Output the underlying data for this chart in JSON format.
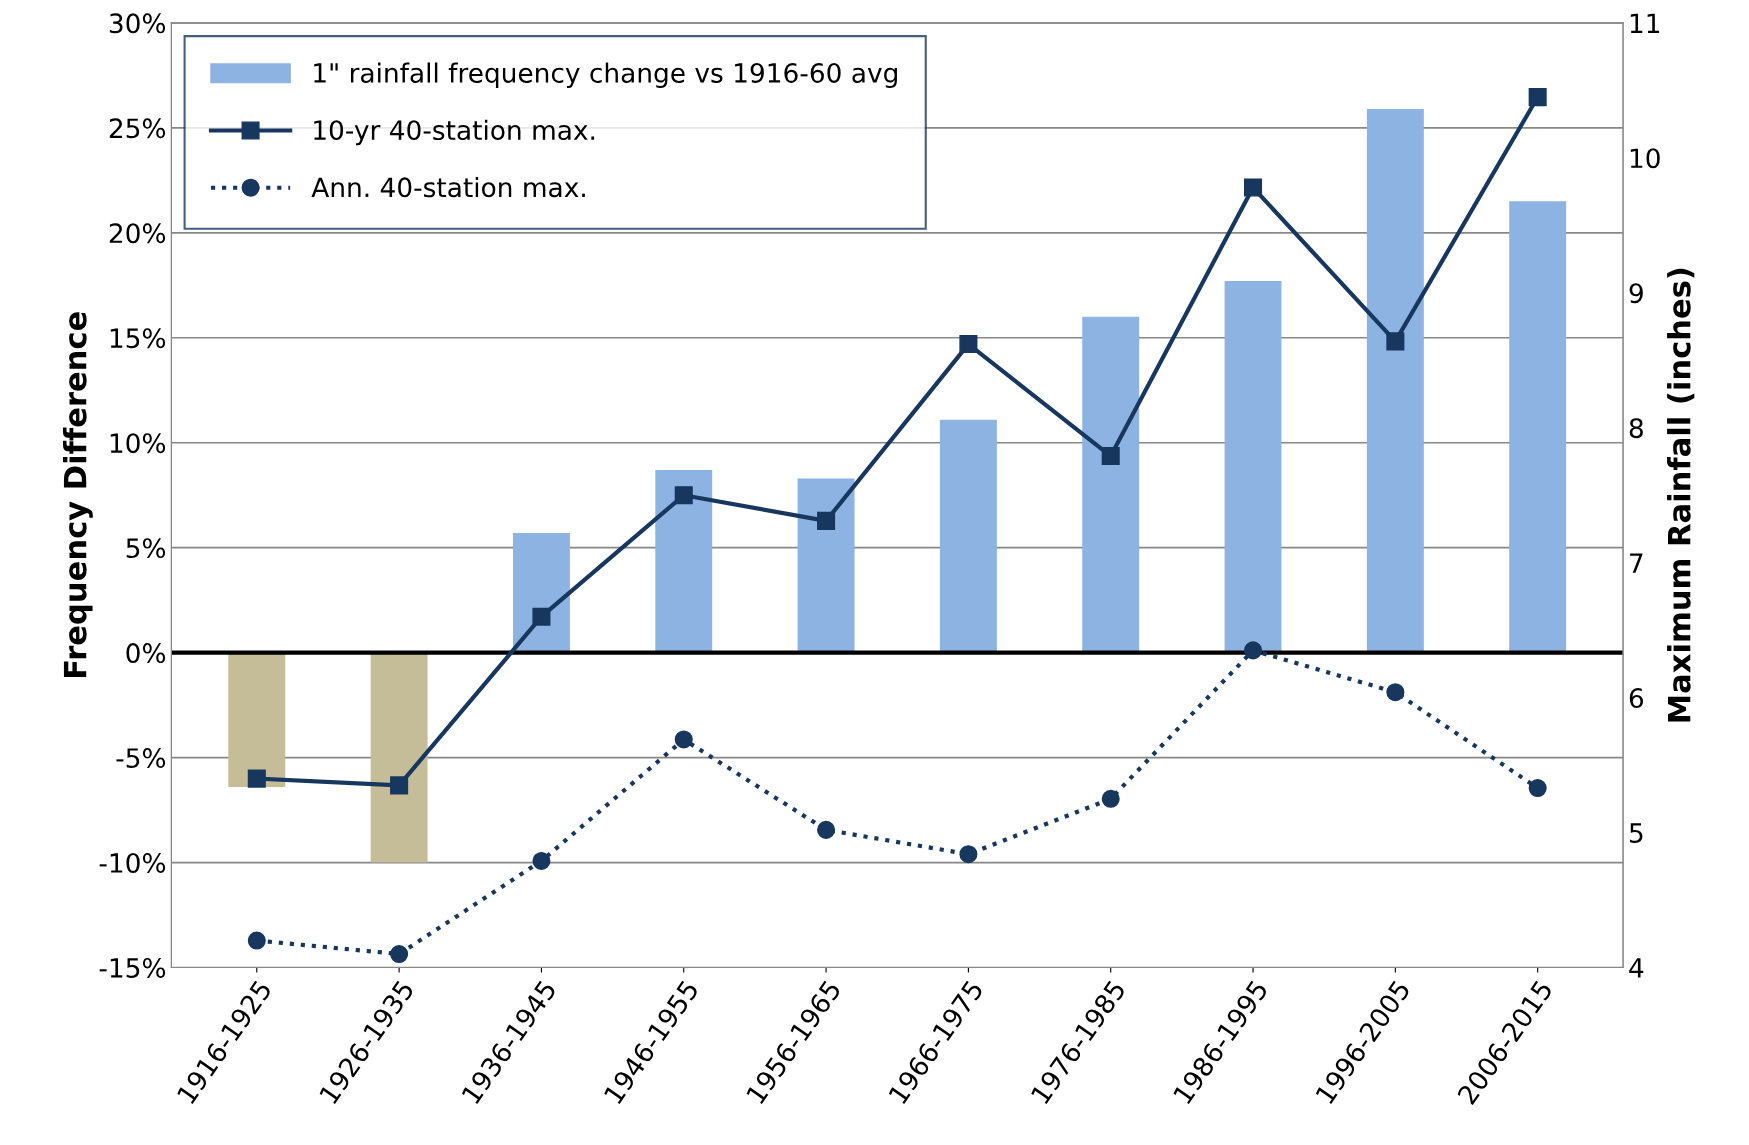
{
  "chart_data": {
    "type": "bar",
    "categories": [
      "1916-1925",
      "1926-1935",
      "1936-1945",
      "1946-1955",
      "1956-1965",
      "1966-1975",
      "1976-1985",
      "1986-1995",
      "1996-2005",
      "2006-2015"
    ],
    "series": [
      {
        "name": "1\" rainfall frequency change vs 1916-60 avg",
        "color": "#8db3e2",
        "colors": [
          "#c4bd97",
          "#c4bd97",
          "#8db3e2",
          "#8db3e2",
          "#8db3e2",
          "#8db3e2",
          "#8db3e2",
          "#8db3e2",
          "#8db3e2",
          "#8db3e2"
        ],
        "values": [
          -6.4,
          -10.0,
          5.7,
          8.7,
          8.3,
          11.1,
          16.0,
          17.7,
          25.9,
          21.5
        ]
      },
      {
        "name": "10-yr 40-station max.",
        "type": "line",
        "axis": "y2",
        "color": "#17375e",
        "marker": "square",
        "line_style": "solid",
        "values": [
          5.4,
          5.35,
          6.6,
          7.5,
          7.31,
          8.62,
          7.79,
          9.78,
          8.64,
          10.45
        ]
      },
      {
        "name": "Ann. 40-station max.",
        "type": "line",
        "axis": "y2",
        "color": "#17375e",
        "marker": "circle",
        "line_style": "dotted",
        "values": [
          4.2,
          4.1,
          4.79,
          5.69,
          5.02,
          4.84,
          5.25,
          6.35,
          6.04,
          5.33
        ]
      }
    ],
    "ylabel": "Frequency Difference",
    "y2label": "Maximum Rainfall (inches)",
    "ylim": [
      -15,
      30
    ],
    "yticks": [
      {
        "value": -15,
        "label": "-15%"
      },
      {
        "value": -10,
        "label": "-10%"
      },
      {
        "value": -5,
        "label": "-5%"
      },
      {
        "value": 0,
        "label": "0%"
      },
      {
        "value": 5,
        "label": "5%"
      },
      {
        "value": 10,
        "label": "10%"
      },
      {
        "value": 15,
        "label": "15%"
      },
      {
        "value": 20,
        "label": "20%"
      },
      {
        "value": 25,
        "label": "25%"
      },
      {
        "value": 30,
        "label": "30%"
      }
    ],
    "y2lim": [
      4,
      11
    ],
    "y2ticks": [
      4,
      5,
      6,
      7,
      8,
      9,
      10,
      11
    ],
    "ref_lines": [
      {
        "axis": "y",
        "value": 0,
        "color": "#000000"
      }
    ],
    "grid": "y",
    "legend": "top left"
  }
}
